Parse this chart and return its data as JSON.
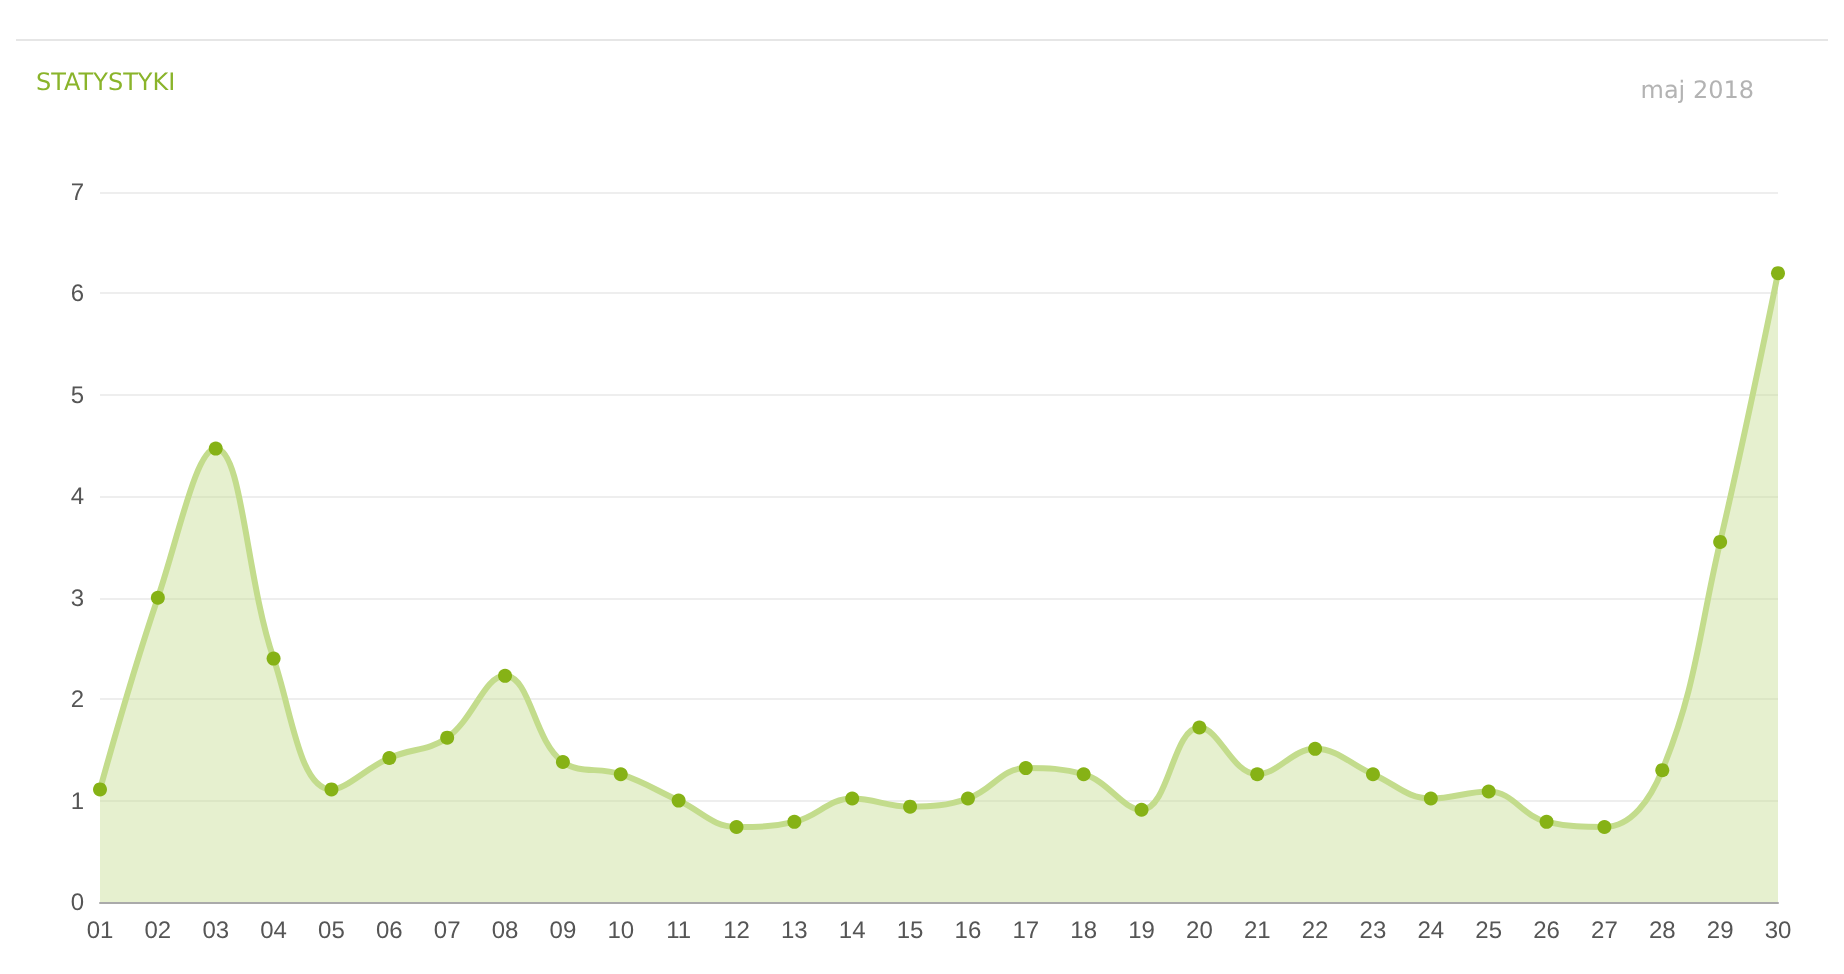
{
  "chart_data": {
    "type": "area",
    "title": "STATYSTYKI",
    "subtitle": "maj 2018",
    "categories": [
      "01",
      "02",
      "03",
      "04",
      "05",
      "06",
      "07",
      "08",
      "09",
      "10",
      "11",
      "12",
      "13",
      "14",
      "15",
      "16",
      "17",
      "18",
      "19",
      "20",
      "21",
      "22",
      "23",
      "24",
      "25",
      "26",
      "27",
      "28",
      "29",
      "30"
    ],
    "series": [
      {
        "color": "#c3dc8c",
        "values": [
          1.11,
          3.0,
          4.47,
          2.4,
          1.11,
          1.42,
          1.62,
          2.23,
          1.38,
          1.26,
          1.0,
          0.74,
          0.79,
          1.02,
          0.94,
          1.02,
          1.32,
          1.26,
          0.91,
          1.72,
          1.26,
          1.51,
          1.26,
          1.02,
          1.09,
          0.79,
          0.74,
          1.3,
          3.55,
          6.2
        ]
      }
    ],
    "ylim": [
      0,
      7
    ],
    "yticks": [
      0,
      1,
      2,
      3,
      4,
      5,
      6,
      7
    ],
    "grid": "y",
    "marker": "circle",
    "line_style": "solid"
  }
}
